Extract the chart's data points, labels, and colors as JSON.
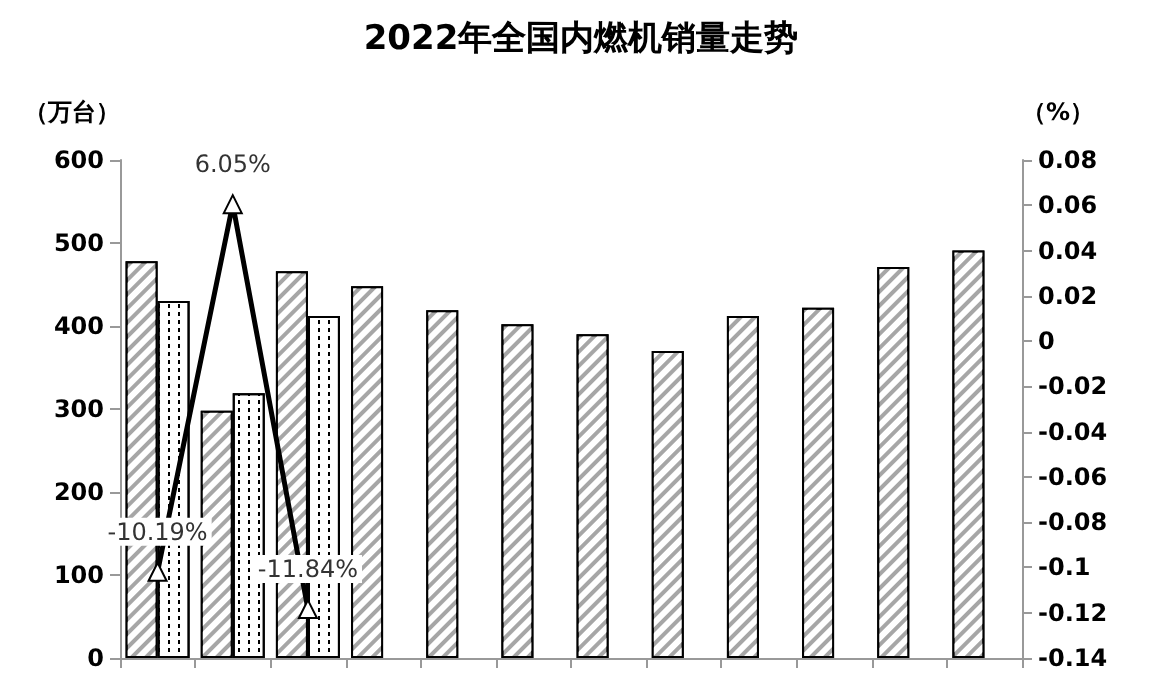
{
  "chart_data": {
    "type": "bar",
    "title": "2022年全国内燃机销量走势",
    "ylabel": "（万台）",
    "y2label": "（%）",
    "categories": [
      null,
      null,
      null,
      null,
      null,
      null,
      null,
      null,
      null,
      null,
      null,
      null
    ],
    "series": [
      {
        "color": "#a6a6a6",
        "values": [
          478,
          298,
          466,
          448,
          419,
          402,
          390,
          370,
          412,
          422,
          471,
          491
        ]
      },
      {
        "color": "#ffffff",
        "values": [
          430,
          319,
          412,
          null,
          null,
          null,
          null,
          null,
          null,
          null,
          null,
          null
        ]
      },
      {
        "type": "line",
        "axis": "y2",
        "color": "#000000",
        "marker": "triangle",
        "values": [
          -0.1019,
          0.0605,
          -0.1184,
          null,
          null,
          null,
          null,
          null,
          null,
          null,
          null,
          null
        ],
        "value_labels": [
          "-10.19%",
          "6.05%",
          "-11.84%",
          null,
          null,
          null,
          null,
          null,
          null,
          null,
          null,
          null
        ]
      }
    ],
    "ylim": [
      0,
      600
    ],
    "yticks": [
      0,
      100,
      200,
      300,
      400,
      500,
      600
    ],
    "y2lim": [
      -0.14,
      0.08
    ],
    "y2ticks": [
      -0.14,
      -0.12,
      -0.1,
      -0.08,
      -0.06,
      -0.04,
      -0.02,
      0,
      0.02,
      0.04,
      0.06,
      0.08
    ],
    "grid": false
  }
}
